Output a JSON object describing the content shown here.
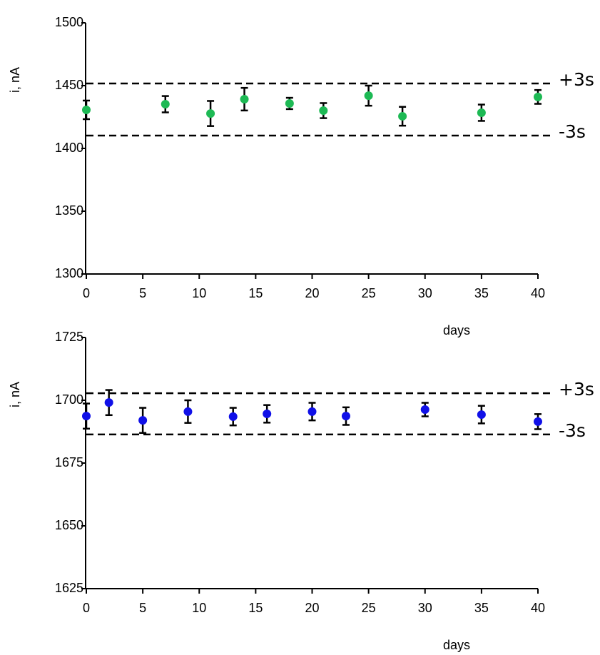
{
  "chart_data": [
    {
      "type": "scatter",
      "ylabel": "i, nA",
      "xlabel": "days",
      "x": [
        0,
        7,
        11,
        14,
        18,
        21,
        25,
        28,
        35,
        40
      ],
      "series": [
        {
          "color": "#1db954",
          "values": [
            1430.7,
            1435.2,
            1427.8,
            1439.2,
            1435.8,
            1430.1,
            1442,
            1425.6,
            1428.4,
            1441
          ],
          "errors": [
            7.4,
            6.5,
            10,
            9,
            4.5,
            6,
            8,
            7.5,
            6.5,
            5.5
          ]
        }
      ],
      "xlim": [
        0,
        40
      ],
      "xticks": [
        0,
        5,
        10,
        15,
        20,
        25,
        30,
        35,
        40
      ],
      "ylim": [
        1300,
        1500
      ],
      "yticks": [
        1300,
        1350,
        1400,
        1450,
        1500
      ],
      "hlines": [
        {
          "value": 1451.7,
          "label": "+3s"
        },
        {
          "value": 1410.2,
          "label": "-3s"
        }
      ]
    },
    {
      "type": "scatter",
      "ylabel": "i, nA",
      "xlabel": "days",
      "x": [
        0,
        2,
        5,
        9,
        13,
        16,
        20,
        23,
        30,
        35,
        40
      ],
      "series": [
        {
          "color": "#1010e8",
          "values": [
            1693.7,
            1699.1,
            1692,
            1695.5,
            1693.5,
            1694.6,
            1695.5,
            1693.7,
            1696.3,
            1694.3,
            1691.5
          ],
          "errors": [
            5,
            5,
            5,
            4.5,
            3.5,
            3.5,
            3.5,
            3.5,
            2.7,
            3.5,
            3
          ]
        }
      ],
      "xlim": [
        0,
        40
      ],
      "xticks": [
        0,
        5,
        10,
        15,
        20,
        25,
        30,
        35,
        40
      ],
      "ylim": [
        1625,
        1725
      ],
      "yticks": [
        1625,
        1650,
        1675,
        1700,
        1725
      ],
      "hlines": [
        {
          "value": 1702.8,
          "label": "+3s"
        },
        {
          "value": 1686.4,
          "label": "-3s"
        }
      ]
    }
  ]
}
